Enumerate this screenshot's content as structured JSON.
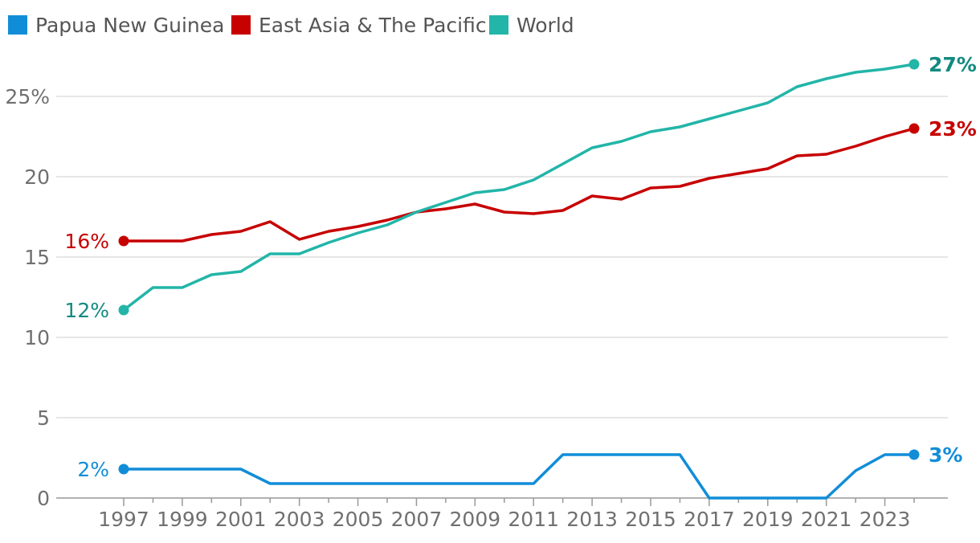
{
  "chart_data": {
    "type": "line",
    "title": "",
    "xlabel": "",
    "ylabel": "",
    "ylim": [
      0,
      27.5
    ],
    "xlim": [
      1997,
      2024
    ],
    "y_ticks": [
      0,
      5,
      10,
      15,
      20,
      25
    ],
    "y_tick_labels": [
      "0",
      "5",
      "10",
      "15",
      "20",
      "25%"
    ],
    "x_tick_labels": [
      "1997",
      "1999",
      "2001",
      "2003",
      "2005",
      "2007",
      "2009",
      "2011",
      "2013",
      "2015",
      "2017",
      "2019",
      "2021",
      "2023"
    ],
    "grid": true,
    "legend_position": "top-left",
    "x": [
      1997,
      1998,
      1999,
      2000,
      2001,
      2002,
      2003,
      2004,
      2005,
      2006,
      2007,
      2008,
      2009,
      2010,
      2011,
      2012,
      2013,
      2014,
      2015,
      2016,
      2017,
      2018,
      2019,
      2020,
      2021,
      2022,
      2023,
      2024
    ],
    "series": [
      {
        "name": "Papua New Guinea",
        "color": "#118dd8",
        "label_color": "#118dd8",
        "start_label": "2%",
        "end_label": "3%",
        "values": [
          1.8,
          1.8,
          1.8,
          1.8,
          1.8,
          0.9,
          0.9,
          0.9,
          0.9,
          0.9,
          0.9,
          0.9,
          0.9,
          0.9,
          0.9,
          2.7,
          2.7,
          2.7,
          2.7,
          2.7,
          0.0,
          0.0,
          0.0,
          0.0,
          0.0,
          1.7,
          2.7,
          2.7
        ]
      },
      {
        "name": "East Asia & The Pacific",
        "color": "#c70000",
        "label_color": "#c70000",
        "start_label": "16%",
        "end_label": "23%",
        "values": [
          16.0,
          16.0,
          16.0,
          16.4,
          16.6,
          17.2,
          16.1,
          16.6,
          16.9,
          17.3,
          17.8,
          18.0,
          18.3,
          17.8,
          17.7,
          17.9,
          18.8,
          18.6,
          19.3,
          19.4,
          19.9,
          20.2,
          20.5,
          21.3,
          21.4,
          21.9,
          22.5,
          23.0
        ]
      },
      {
        "name": "World",
        "color": "#22b5a8",
        "label_color": "#128a80",
        "start_label": "12%",
        "end_label": "27%",
        "values": [
          11.7,
          13.1,
          13.1,
          13.9,
          14.1,
          15.2,
          15.2,
          15.9,
          16.5,
          17.0,
          17.8,
          18.4,
          19.0,
          19.2,
          19.8,
          20.8,
          21.8,
          22.2,
          22.8,
          23.1,
          23.6,
          24.1,
          24.6,
          25.6,
          26.1,
          26.5,
          26.7,
          27.0
        ]
      }
    ]
  }
}
